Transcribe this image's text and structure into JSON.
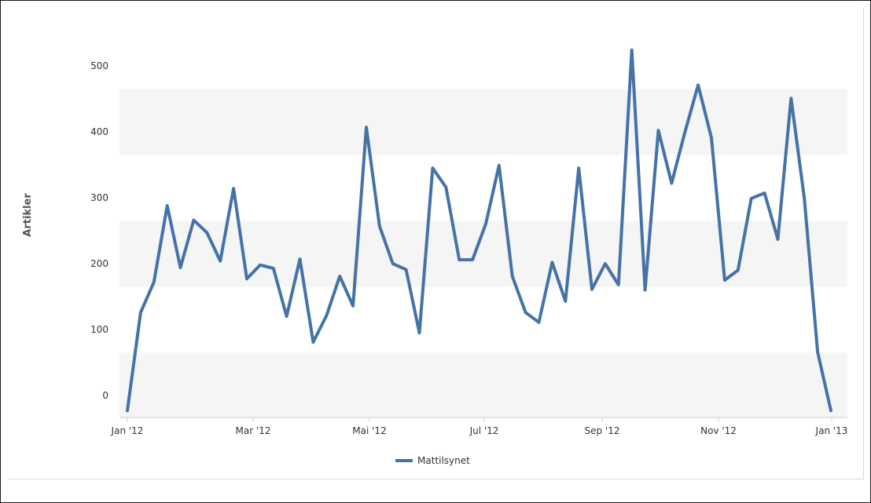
{
  "chart_data": {
    "type": "line",
    "ylabel": "Artikler",
    "yticks": [
      "0",
      "100",
      "200",
      "300",
      "400",
      "500"
    ],
    "ylim": [
      -25,
      525
    ],
    "xticks": [
      "Jan '12",
      "Mar '12",
      "Mai '12",
      "Jul '12",
      "Sep '12",
      "Nov '12",
      "Jan '13"
    ],
    "grid": "alternating horizontal bands",
    "legend_position": "bottom-center",
    "series": [
      {
        "name": "Mattilsynet",
        "color": "#4572a7",
        "values": [
          -23,
          126,
          172,
          288,
          194,
          266,
          247,
          204,
          314,
          177,
          198,
          193,
          120,
          207,
          81,
          121,
          181,
          136,
          407,
          257,
          200,
          191,
          95,
          345,
          316,
          206,
          206,
          260,
          349,
          181,
          126,
          111,
          202,
          143,
          345,
          161,
          200,
          168,
          524,
          160,
          402,
          322,
          399,
          471,
          391,
          175,
          190,
          299,
          307,
          237,
          451,
          299,
          66,
          -23
        ]
      }
    ]
  }
}
